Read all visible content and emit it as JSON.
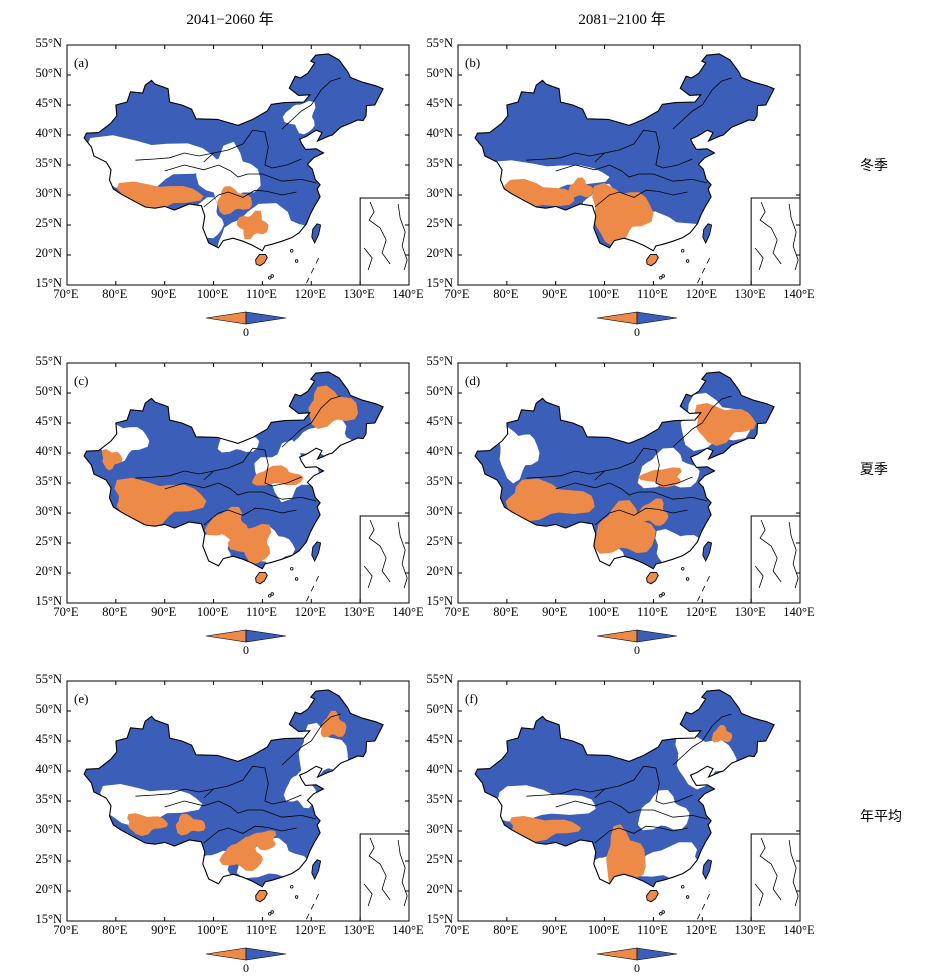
{
  "column_titles": [
    "2041−2060 年",
    "2081−2100 年"
  ],
  "row_titles": [
    "冬季",
    "夏季",
    "年平均"
  ],
  "y_ticks": [
    "55°N",
    "50°N",
    "45°N",
    "40°N",
    "35°N",
    "30°N",
    "25°N",
    "20°N",
    "15°N"
  ],
  "x_ticks": [
    "70°E",
    "80°E",
    "90°E",
    "100°E",
    "110°E",
    "120°E",
    "130°E",
    "140°E"
  ],
  "colorbar_label": "0",
  "colors": {
    "negative": "#ee8a48",
    "positive": "#3b5fb8",
    "border": "#000000"
  },
  "panels": [
    {
      "label": "(a)",
      "period": "2041−2060 年",
      "season": "冬季"
    },
    {
      "label": "(b)",
      "period": "2081−2100 年",
      "season": "冬季"
    },
    {
      "label": "(c)",
      "period": "2041−2060 年",
      "season": "夏季"
    },
    {
      "label": "(d)",
      "period": "2081−2100 年",
      "season": "夏季"
    },
    {
      "label": "(e)",
      "period": "2041−2060 年",
      "season": "年平均"
    },
    {
      "label": "(f)",
      "period": "2081−2100 年",
      "season": "年平均"
    }
  ]
}
